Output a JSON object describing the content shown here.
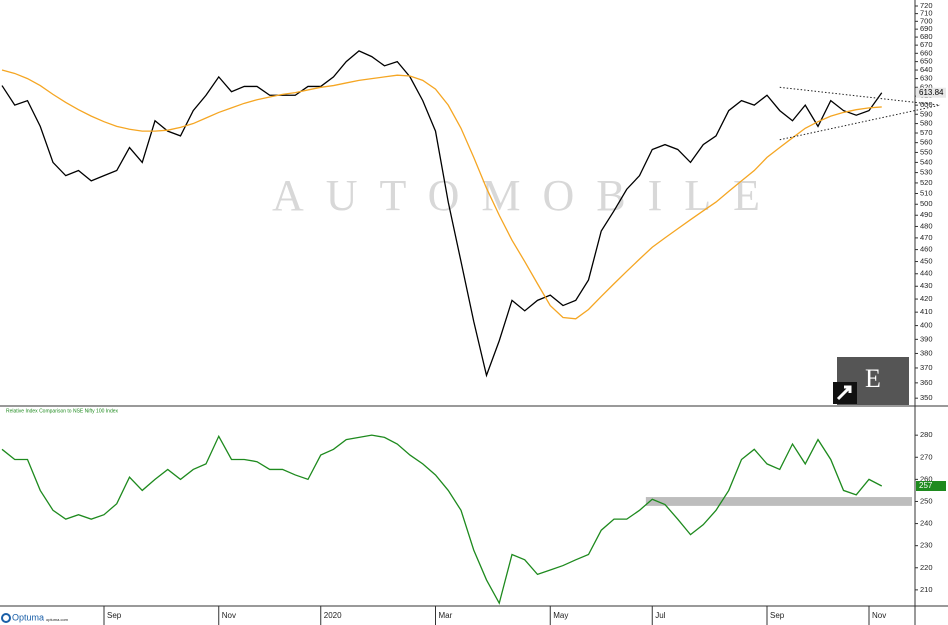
{
  "chart_data": [
    {
      "type": "line",
      "log_scale": true,
      "watermark": "AUTOMOBILE",
      "badge": "E",
      "ylim": [
        345,
        728
      ],
      "yticks": [
        350,
        360,
        370,
        380,
        390,
        400,
        410,
        420,
        430,
        440,
        450,
        460,
        470,
        480,
        490,
        500,
        510,
        520,
        530,
        540,
        550,
        560,
        570,
        580,
        590,
        600,
        610,
        620,
        630,
        640,
        650,
        660,
        670,
        680,
        690,
        700,
        710,
        720
      ],
      "series": [
        {
          "color": "#000000",
          "values": [
            622,
            600,
            605,
            577,
            540,
            527,
            532,
            522,
            527,
            532,
            555,
            540,
            583,
            572,
            567,
            594,
            611,
            632,
            615,
            621,
            621,
            611,
            611,
            611,
            621,
            621,
            632,
            650,
            663,
            656,
            645,
            650,
            632,
            605,
            572,
            502,
            450,
            403,
            365,
            389,
            419,
            411,
            419,
            423,
            415,
            419,
            435,
            476,
            494,
            514,
            527,
            553,
            558,
            553,
            540,
            558,
            567,
            594,
            605,
            600,
            611,
            594,
            583,
            600,
            577,
            605,
            594,
            589,
            594,
            613.84
          ]
        },
        {
          "color": "#f5a623",
          "values": [
            640,
            636,
            630,
            622,
            612,
            603,
            595,
            588,
            582,
            577,
            574,
            572,
            572,
            573,
            576,
            580,
            586,
            592,
            597,
            602,
            606,
            609,
            612,
            614,
            617,
            620,
            622,
            625,
            628,
            630,
            632,
            634,
            633,
            628,
            618,
            600,
            575,
            545,
            515,
            490,
            468,
            450,
            432,
            415,
            406,
            405,
            412,
            422,
            432,
            442,
            452,
            462,
            470,
            478,
            486,
            494,
            502,
            512,
            522,
            532,
            545,
            555,
            565,
            575,
            582,
            588,
            592,
            595,
            597,
            598
          ]
        }
      ],
      "trendlines": [
        [
          620,
          600
        ],
        [
          563,
          600
        ]
      ]
    },
    {
      "type": "line",
      "title": "Relative Index Comparison to NSE Nifty 100 Index",
      "categories": [
        null,
        null,
        null,
        null,
        null,
        null,
        null,
        null,
        "Sep",
        null,
        null,
        null,
        null,
        null,
        null,
        null,
        null,
        "Nov",
        null,
        null,
        null,
        null,
        null,
        null,
        null,
        "2020",
        null,
        null,
        null,
        null,
        null,
        null,
        null,
        null,
        "Mar",
        null,
        null,
        null,
        null,
        null,
        null,
        null,
        null,
        "May",
        null,
        null,
        null,
        null,
        null,
        null,
        null,
        "Jul",
        null,
        null,
        null,
        null,
        null,
        null,
        null,
        null,
        "Sep",
        null,
        null,
        null,
        null,
        null,
        null,
        null,
        "Nov",
        null
      ],
      "ylim": [
        202.7,
        293.2
      ],
      "yticks": [
        210,
        220,
        230,
        240,
        250,
        260,
        270,
        280
      ],
      "series": [
        {
          "color": "#1e8a1e",
          "values": [
            273.6,
            269,
            269,
            255,
            246,
            242,
            244,
            242,
            244,
            249,
            261,
            255,
            260,
            264.5,
            260,
            264.5,
            267,
            279.5,
            269,
            269,
            268,
            264.5,
            264.5,
            262,
            260,
            271,
            273.6,
            278,
            279,
            280,
            279,
            276,
            271,
            267,
            262,
            255,
            246,
            228,
            214.5,
            204,
            226,
            223.6,
            217,
            219,
            221,
            223.6,
            226,
            237,
            242,
            242,
            246,
            251,
            248.6,
            242,
            235,
            239.5,
            246,
            255,
            269,
            273.6,
            267,
            264.5,
            276,
            267,
            278,
            269,
            255,
            253,
            260,
            257
          ]
        }
      ],
      "band": [
        248,
        252
      ]
    }
  ],
  "footer": {
    "brand": "Optuma",
    "site": "optuma.com"
  }
}
